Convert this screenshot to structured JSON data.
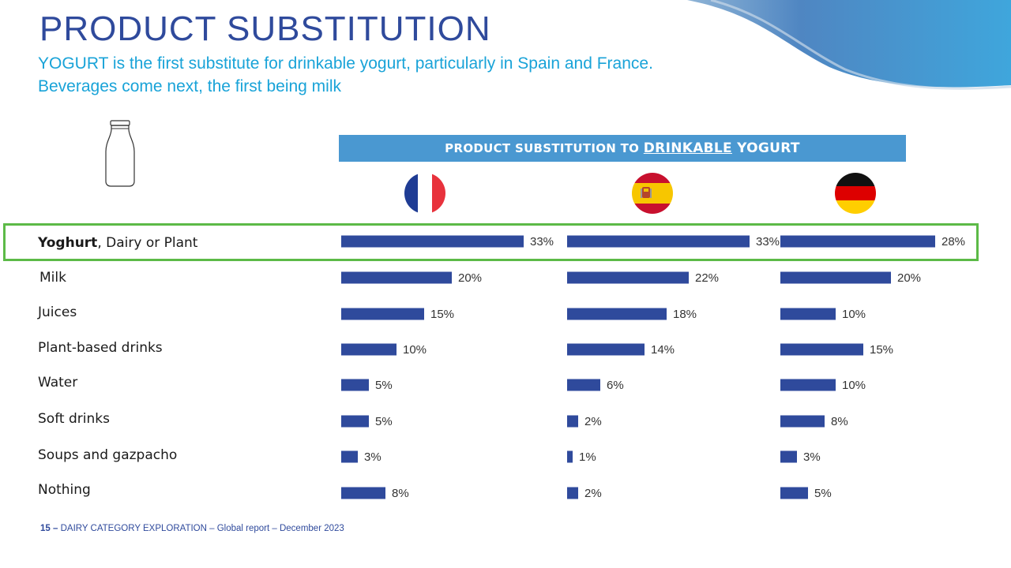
{
  "page": {
    "title": "PRODUCT SUBSTITUTION",
    "subtitle_line1": "YOGURT is the first substitute for drinkable yogurt, particularly in Spain and France.",
    "subtitle_line2": "Beverages come next, the first being milk"
  },
  "header": {
    "prefix": "PRODUCT SUBSTITUTION TO ",
    "underlined": "DRINKABLE",
    "suffix": " YOGURT"
  },
  "rows": [
    {
      "bold": "Yoghurt",
      "rest": ", Dairy or Plant"
    },
    {
      "bold": "",
      "rest": "Milk"
    },
    {
      "bold": "",
      "rest": "Juices"
    },
    {
      "bold": "",
      "rest": "Plant-based drinks"
    },
    {
      "bold": "",
      "rest": "Water"
    },
    {
      "bold": "",
      "rest": "Soft drinks"
    },
    {
      "bold": "",
      "rest": "Soups and gazpacho"
    },
    {
      "bold": "",
      "rest": "Nothing"
    }
  ],
  "icons": {
    "bottle": "drinkable-yogurt-bottle-icon",
    "flags": [
      "france-flag-icon",
      "spain-flag-icon",
      "germany-flag-icon"
    ]
  },
  "colors": {
    "bar": "#2f4a9c",
    "header_band": "#4a98d1",
    "highlight_border": "#5cba47",
    "title": "#2f4a9c",
    "subtitle": "#19a3d8"
  },
  "chart_data": {
    "type": "bar",
    "orientation": "horizontal",
    "title": "PRODUCT SUBSTITUTION TO DRINKABLE YOGURT",
    "categories": [
      "Yoghurt, Dairy or Plant",
      "Milk",
      "Juices",
      "Plant-based drinks",
      "Water",
      "Soft drinks",
      "Soups and gazpacho",
      "Nothing"
    ],
    "unit": "%",
    "series": [
      {
        "values": [
          33,
          20,
          15,
          10,
          5,
          5,
          3,
          8
        ]
      },
      {
        "values": [
          33,
          22,
          18,
          14,
          6,
          2,
          1,
          2
        ]
      },
      {
        "values": [
          28,
          20,
          10,
          15,
          10,
          8,
          3,
          5
        ]
      }
    ],
    "highlighted_category": "Yoghurt, Dairy or Plant"
  },
  "footer": {
    "page_number": "15 –",
    "text": "DAIRY CATEGORY EXPLORATION – Global report – December 2023"
  }
}
